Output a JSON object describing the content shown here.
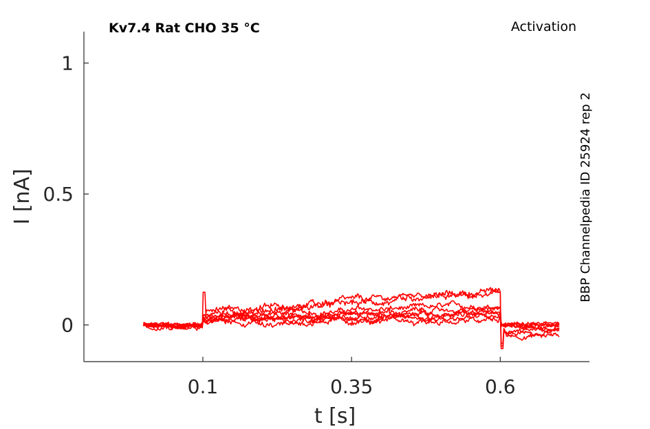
{
  "chart_data": {
    "type": "line",
    "title": "Kv7.4  Rat  CHO  35 °C",
    "protocol_label": "Activation",
    "source_label": "BBP Channelpedia ID 25924 rep 2",
    "xlabel": "t [s]",
    "ylabel": "I [nA]",
    "xlim": [
      -0.1,
      0.75
    ],
    "ylim": [
      -0.14,
      1.12
    ],
    "xticks": [
      0.1,
      0.35,
      0.6
    ],
    "xtick_labels": [
      "0.1",
      "0.35",
      "0.6"
    ],
    "yticks": [
      0,
      0.5,
      1
    ],
    "ytick_labels": [
      "0",
      "0.5",
      "1"
    ],
    "grid": false,
    "line_color": "#ff0000",
    "step_on": 0.1,
    "step_off": 0.6,
    "series": [
      {
        "baseline": 0.0,
        "start": 0.035,
        "end": 0.075,
        "tail": -0.03,
        "noise": 0.01
      },
      {
        "baseline": 0.0,
        "start": 0.05,
        "end": 0.13,
        "tail": -0.04,
        "noise": 0.012
      },
      {
        "baseline": 0.0,
        "start": 0.045,
        "end": 0.115,
        "tail": -0.025,
        "noise": 0.012
      },
      {
        "baseline": 0.0,
        "start": 0.03,
        "end": 0.06,
        "tail": -0.01,
        "noise": 0.01
      },
      {
        "baseline": 0.0,
        "start": 0.025,
        "end": 0.05,
        "tail": 0.0,
        "noise": 0.01
      },
      {
        "baseline": 0.0,
        "start": 0.02,
        "end": 0.04,
        "tail": 0.005,
        "noise": 0.01
      },
      {
        "baseline": 0.0,
        "start": 0.015,
        "end": 0.03,
        "tail": 0.0,
        "noise": 0.01
      },
      {
        "baseline": 0.0,
        "start": 0.01,
        "end": 0.015,
        "tail": 0.0,
        "noise": 0.012
      }
    ]
  }
}
